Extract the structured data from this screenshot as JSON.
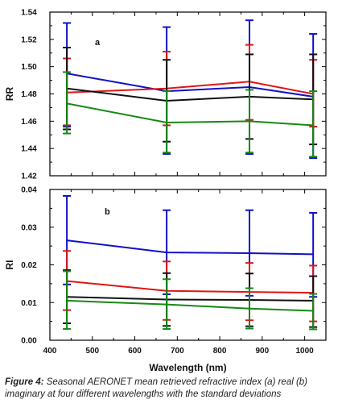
{
  "chart_data": [
    {
      "type": "line",
      "panel_label": "a",
      "ylabel": "RR",
      "xlabel": "",
      "xlim": [
        400,
        1050
      ],
      "ylim": [
        1.42,
        1.54
      ],
      "yticks": [
        "1.42",
        "1.44",
        "1.46",
        "1.48",
        "1.50",
        "1.52",
        "1.54"
      ],
      "x": [
        440,
        675,
        870,
        1020
      ],
      "grid": false,
      "series": [
        {
          "color": "#1010c8",
          "values": [
            1.495,
            1.482,
            1.485,
            1.478
          ],
          "err_low": [
            1.456,
            1.436,
            1.436,
            1.433
          ],
          "err_high": [
            1.532,
            1.529,
            1.534,
            1.524
          ]
        },
        {
          "color": "#e01515",
          "values": [
            1.481,
            1.484,
            1.489,
            1.48
          ],
          "err_low": [
            1.457,
            1.457,
            1.461,
            1.456
          ],
          "err_high": [
            1.506,
            1.511,
            1.516,
            1.505
          ]
        },
        {
          "color": "#111111",
          "values": [
            1.484,
            1.475,
            1.478,
            1.476
          ],
          "err_low": [
            1.454,
            1.445,
            1.447,
            1.443
          ],
          "err_high": [
            1.514,
            1.505,
            1.509,
            1.509
          ]
        },
        {
          "color": "#158a15",
          "values": [
            1.473,
            1.459,
            1.46,
            1.457
          ],
          "err_low": [
            1.451,
            1.437,
            1.437,
            1.434
          ],
          "err_high": [
            1.496,
            1.482,
            1.483,
            1.482
          ]
        }
      ]
    },
    {
      "type": "line",
      "panel_label": "b",
      "ylabel": "RI",
      "xlabel": "Wavelength (nm)",
      "xlim": [
        400,
        1050
      ],
      "ylim": [
        0.0,
        0.04
      ],
      "yticks": [
        "0.00",
        "0.01",
        "0.02",
        "0.03",
        "0.04"
      ],
      "xticks": [
        "400",
        "500",
        "600",
        "700",
        "800",
        "900",
        "1000"
      ],
      "x": [
        440,
        675,
        870,
        1020
      ],
      "grid": false,
      "series": [
        {
          "color": "#1010c8",
          "values": [
            0.0265,
            0.0233,
            0.0231,
            0.0228
          ],
          "err_low": [
            0.0148,
            0.0122,
            0.0118,
            0.0115
          ],
          "err_high": [
            0.0383,
            0.0345,
            0.0345,
            0.0338
          ]
        },
        {
          "color": "#e01515",
          "values": [
            0.0157,
            0.0131,
            0.0128,
            0.0126
          ],
          "err_low": [
            0.008,
            0.0054,
            0.0053,
            0.005
          ],
          "err_high": [
            0.0237,
            0.0209,
            0.0205,
            0.0198
          ]
        },
        {
          "color": "#111111",
          "values": [
            0.0115,
            0.0108,
            0.0107,
            0.0105
          ],
          "err_low": [
            0.0045,
            0.0038,
            0.0037,
            0.0035
          ],
          "err_high": [
            0.0186,
            0.0178,
            0.0177,
            0.017
          ]
        },
        {
          "color": "#158a15",
          "values": [
            0.0105,
            0.0095,
            0.0084,
            0.0078
          ],
          "err_low": [
            0.003,
            0.003,
            0.0031,
            0.0029
          ],
          "err_high": [
            0.0183,
            0.0162,
            0.0138,
            0.0123
          ]
        }
      ]
    }
  ],
  "caption": {
    "prefix": "Figure 4:",
    "text": " Seasonal AERONET mean retrieved refractive index (a) real (b) imaginary at four different wavelengths with the standard deviations"
  }
}
